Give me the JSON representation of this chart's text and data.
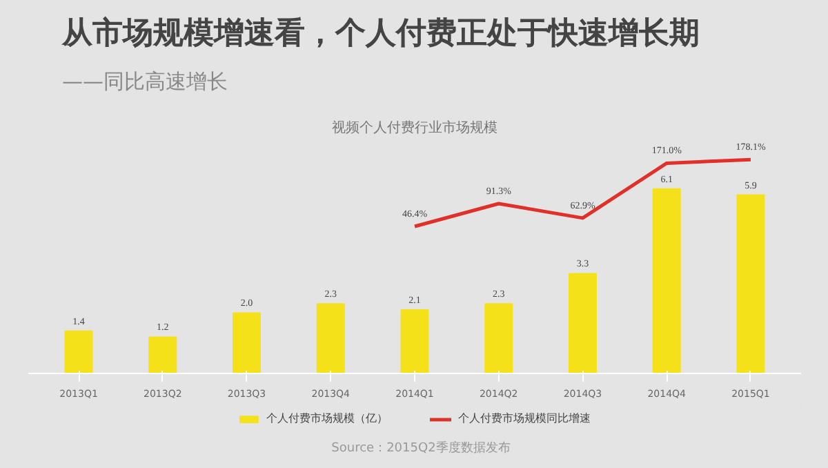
{
  "chart_data": {
    "type": "bar",
    "title": "从市场规模增速看，个人付费正处于快速增长期",
    "subtitle": "——同比高速增长",
    "annotations": [
      "视频个人付费行业市场规模",
      "Source：2015Q2季度数据发布"
    ],
    "categories": [
      "2013Q1",
      "2013Q2",
      "2013Q3",
      "2013Q4",
      "2014Q1",
      "2014Q2",
      "2014Q3",
      "2014Q4",
      "2015Q1"
    ],
    "series": [
      {
        "name": "个人付费市场规模（亿）",
        "color": "#f5e11a",
        "values": [
          1.4,
          1.2,
          2.0,
          2.3,
          2.1,
          2.3,
          3.3,
          6.1,
          5.9
        ],
        "value_labels": [
          "1.4",
          "1.2",
          "2.0",
          "2.3",
          "2.1",
          "2.3",
          "3.3",
          "6.1",
          "5.9"
        ]
      },
      {
        "name": "个人付费市场规模同比增速",
        "type": "line",
        "axis": "y2",
        "color": "#e0302a",
        "values": [
          null,
          null,
          null,
          null,
          46.4,
          91.3,
          62.9,
          171.0,
          178.1
        ],
        "value_labels": [
          null,
          null,
          null,
          null,
          "46.4%",
          "91.3%",
          "62.9%",
          "171.0%",
          "178.1%"
        ]
      }
    ],
    "tick_labels": "x",
    "legend": "bottom",
    "marker": "none",
    "line_style": "solid"
  }
}
